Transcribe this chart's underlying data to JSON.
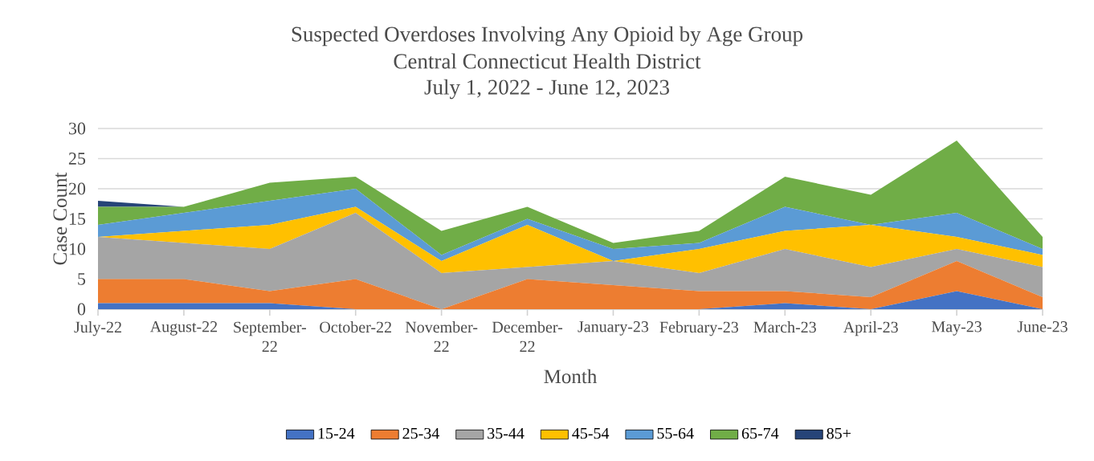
{
  "chart_data": {
    "type": "area",
    "stacked": true,
    "title": "Suspected Overdoses Involving Any Opioid by Age Group",
    "subtitle": "Central Connecticut Health District",
    "annotations": [
      "July 1, 2022 - June 12, 2023"
    ],
    "xlabel": "Month",
    "ylabel": "Case Count",
    "categories": [
      "July-22",
      "August-22",
      "September-22",
      "October-22",
      "November-22",
      "December-22",
      "January-23",
      "February-23",
      "March-23",
      "April-23",
      "May-23",
      "June-23"
    ],
    "series": [
      {
        "name": "15-24",
        "color": "#4472c4",
        "values": [
          1,
          1,
          1,
          0,
          0,
          0,
          0,
          0,
          1,
          0,
          3,
          0
        ]
      },
      {
        "name": "25-34",
        "color": "#ed7d31",
        "values": [
          4,
          4,
          2,
          5,
          0,
          5,
          4,
          3,
          2,
          2,
          5,
          2
        ]
      },
      {
        "name": "35-44",
        "color": "#a5a5a5",
        "values": [
          7,
          6,
          7,
          11,
          6,
          2,
          4,
          3,
          7,
          5,
          2,
          5
        ]
      },
      {
        "name": "45-54",
        "color": "#ffc000",
        "values": [
          0,
          2,
          4,
          1,
          2,
          7,
          0,
          4,
          3,
          7,
          2,
          2
        ]
      },
      {
        "name": "55-64",
        "color": "#5b9bd5",
        "values": [
          2,
          3,
          4,
          3,
          1,
          1,
          2,
          1,
          4,
          0,
          4,
          1
        ]
      },
      {
        "name": "65-74",
        "color": "#70ad47",
        "values": [
          3,
          1,
          3,
          2,
          4,
          2,
          1,
          2,
          5,
          5,
          12,
          2
        ]
      },
      {
        "name": "85+",
        "color": "#264478",
        "values": [
          1,
          0,
          0,
          0,
          0,
          0,
          0,
          0,
          0,
          0,
          0,
          0
        ]
      }
    ],
    "ylim": [
      0,
      30
    ],
    "yticks": [
      0,
      5,
      10,
      15,
      20,
      25,
      30
    ],
    "grid": "y",
    "legend": "bottom"
  }
}
